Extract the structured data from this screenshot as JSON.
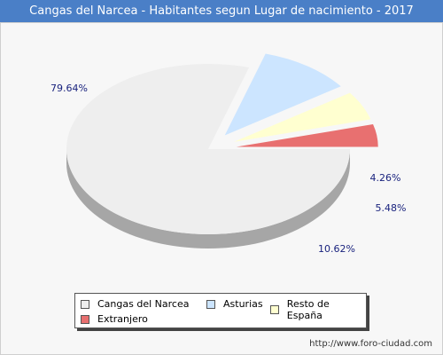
{
  "title": "Cangas del Narcea - Habitantes segun Lugar de nacimiento - 2017",
  "source": "http://www.foro-ciudad.com",
  "colors": {
    "title_bg": "#4a7fc7",
    "label_text": "#1a237e"
  },
  "chart_data": {
    "type": "pie",
    "style": "3d-exploded",
    "title": "Cangas del Narcea - Habitantes segun Lugar de nacimiento - 2017",
    "legend_placement": "bottom",
    "slices": [
      {
        "name": "Cangas del Narcea",
        "value": 79.64,
        "label": "79.64%",
        "color": "#eeeeee",
        "side_color": "#a6a6a6"
      },
      {
        "name": "Asturias",
        "value": 10.62,
        "label": "10.62%",
        "color": "#cce5ff",
        "side_color": "#7593b1"
      },
      {
        "name": "Resto de España",
        "value": 5.48,
        "label": "5.48%",
        "color": "#ffffd0",
        "side_color": "#a5a578"
      },
      {
        "name": "Extranjero",
        "value": 4.26,
        "label": "4.26%",
        "color": "#e87070",
        "side_color": "#a01818"
      }
    ]
  }
}
